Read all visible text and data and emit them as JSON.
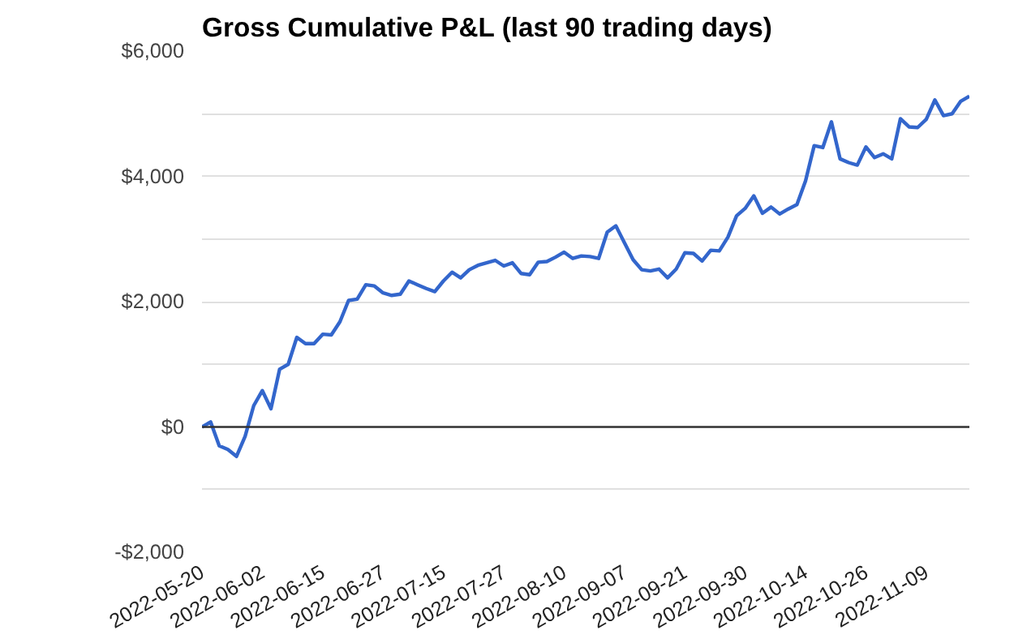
{
  "chart_data": {
    "type": "line",
    "title": "Gross Cumulative P&L (last 90 trading days)",
    "categories": [
      "2022-05-20",
      null,
      null,
      null,
      null,
      null,
      null,
      "2022-06-02",
      null,
      null,
      null,
      null,
      null,
      null,
      "2022-06-15",
      null,
      null,
      null,
      null,
      null,
      null,
      "2022-06-27",
      null,
      null,
      null,
      null,
      null,
      null,
      "2022-07-15",
      null,
      null,
      null,
      null,
      null,
      null,
      "2022-07-27",
      null,
      null,
      null,
      null,
      null,
      null,
      "2022-08-10",
      null,
      null,
      null,
      null,
      null,
      null,
      "2022-09-07",
      null,
      null,
      null,
      null,
      null,
      null,
      "2022-09-21",
      null,
      null,
      null,
      null,
      null,
      null,
      "2022-09-30",
      null,
      null,
      null,
      null,
      null,
      null,
      "2022-10-14",
      null,
      null,
      null,
      null,
      null,
      null,
      "2022-10-26",
      null,
      null,
      null,
      null,
      null,
      null,
      "2022-11-09",
      null,
      null,
      null,
      null,
      null
    ],
    "series": [
      {
        "color": "#3366cc",
        "values": [
          0,
          80,
          -300,
          -360,
          -470,
          -150,
          340,
          580,
          290,
          920,
          1000,
          1430,
          1330,
          1330,
          1480,
          1470,
          1680,
          2020,
          2040,
          2270,
          2250,
          2140,
          2100,
          2120,
          2330,
          2270,
          2210,
          2160,
          2330,
          2470,
          2380,
          2510,
          2580,
          2620,
          2660,
          2570,
          2620,
          2450,
          2430,
          2630,
          2640,
          2710,
          2790,
          2690,
          2730,
          2720,
          2690,
          3110,
          3210,
          2940,
          2670,
          2510,
          2490,
          2520,
          2380,
          2520,
          2780,
          2770,
          2650,
          2820,
          2810,
          3030,
          3370,
          3490,
          3690,
          3410,
          3510,
          3400,
          3480,
          3550,
          3930,
          4490,
          4460,
          4870,
          4280,
          4220,
          4180,
          4470,
          4300,
          4360,
          4280,
          4920,
          4790,
          4780,
          4910,
          5220,
          4970,
          5000,
          5200,
          5280
        ]
      }
    ],
    "ylim": [
      -2000,
      6000
    ],
    "yticks": [
      {
        "value": -2000,
        "label": "-$2,000"
      },
      {
        "value": -1000,
        "label": null
      },
      {
        "value": 0,
        "label": "$0"
      },
      {
        "value": 1000,
        "label": null
      },
      {
        "value": 2000,
        "label": "$2,000"
      },
      {
        "value": 3000,
        "label": null
      },
      {
        "value": 4000,
        "label": "$4,000"
      },
      {
        "value": 5000,
        "label": null
      },
      {
        "value": 6000,
        "label": "$6,000"
      }
    ],
    "ref_lines": [
      {
        "axis": "y",
        "value": 0,
        "color": "#333333"
      }
    ],
    "grid": "y",
    "marker": "none",
    "line_style": "solid"
  }
}
